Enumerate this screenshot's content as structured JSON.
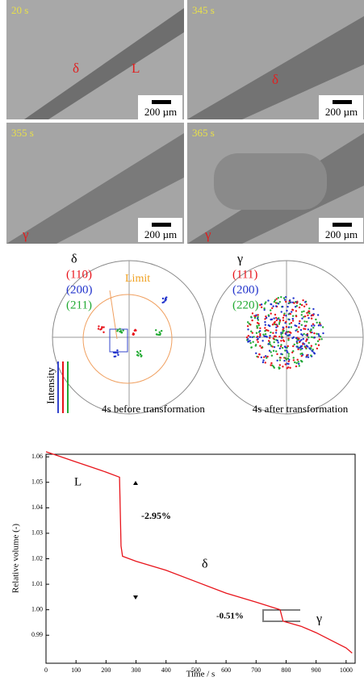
{
  "micrographs": [
    {
      "time": "20 s",
      "labels": [
        "δ",
        "L"
      ],
      "scale": "200 µm"
    },
    {
      "time": "345 s",
      "labels": [
        "δ"
      ],
      "scale": "200 µm"
    },
    {
      "time": "355 s",
      "labels": [
        "γ"
      ],
      "scale": "200 µm"
    },
    {
      "time": "365 s",
      "labels": [
        "γ"
      ],
      "scale": "200 µm"
    }
  ],
  "pole_figures": [
    {
      "phase": "δ",
      "planes": [
        "(110)",
        "(200)",
        "(211)"
      ],
      "limit": "Limit",
      "caption": "4s before transformation"
    },
    {
      "phase": "γ",
      "planes": [
        "(111)",
        "(200)",
        "(220)"
      ],
      "caption": "4s after transformation"
    }
  ],
  "intensity_label": "Intensity",
  "chart_data": {
    "type": "line",
    "x": [
      0,
      50,
      100,
      150,
      200,
      245,
      250,
      255,
      300,
      400,
      500,
      600,
      700,
      780,
      790,
      850,
      900,
      950,
      1000,
      1020
    ],
    "values": [
      1.062,
      1.06,
      1.058,
      1.056,
      1.054,
      1.052,
      1.025,
      1.021,
      1.019,
      1.0155,
      1.011,
      1.0065,
      1.003,
      1.0,
      0.9955,
      0.9935,
      0.991,
      0.988,
      0.985,
      0.983
    ],
    "color": "#e8141b",
    "xlim": [
      0,
      1030
    ],
    "ylim": [
      0.979,
      1.061
    ],
    "xticks": [
      0,
      100,
      200,
      300,
      400,
      500,
      600,
      700,
      800,
      900,
      1000
    ],
    "yticks": [
      0.99,
      {
        "value": 1,
        "label": "1.00"
      },
      1.01,
      1.02,
      1.03,
      1.04,
      1.05,
      1.06
    ],
    "xlabel": "Time / s",
    "ylabel": "Relative volume (-)",
    "annotations": [
      "L",
      "-2.95%",
      "δ",
      "-0.51%",
      "γ"
    ]
  }
}
